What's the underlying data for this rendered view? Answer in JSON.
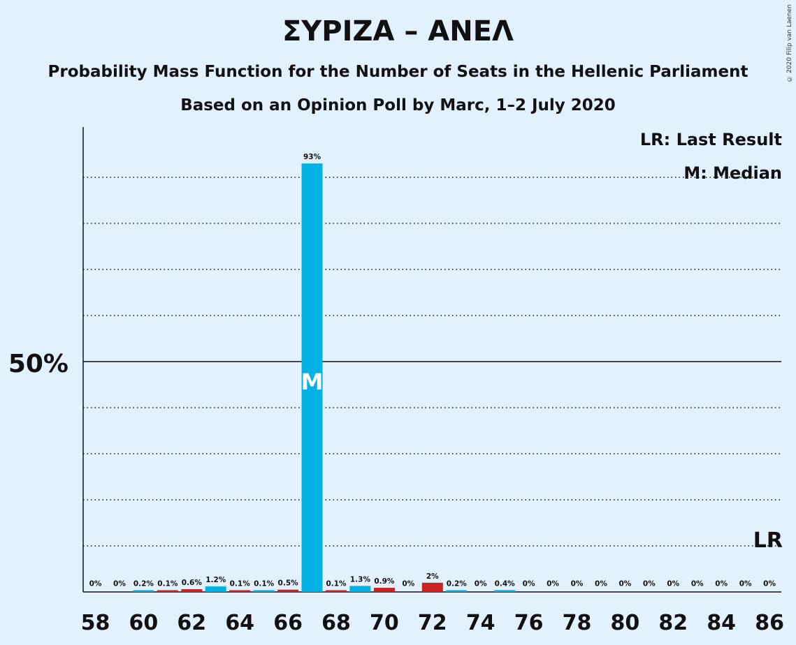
{
  "title": "ΣΥΡΙΖΑ – ΑΝΕΛ",
  "subtitle": "Probability Mass Function for the Number of Seats in the Hellenic Parliament",
  "subtitle2": "Based on an Opinion Poll by Marc, 1–2 July 2020",
  "copyright": "© 2020 Filip van Laenen",
  "legend": {
    "lr": "LR: Last Result",
    "median": "M: Median"
  },
  "colors": {
    "background": "#e3f0fd",
    "bar_primary": "#00b2e3",
    "bar_secondary": "#cc2222",
    "median_label": "#ffffff",
    "axis": "#111111"
  },
  "chart_data": {
    "type": "bar",
    "title": "ΣΥΡΙΖΑ – ΑΝΕΛ",
    "x": [
      58,
      59,
      60,
      61,
      62,
      63,
      64,
      65,
      66,
      67,
      68,
      69,
      70,
      71,
      72,
      73,
      74,
      75,
      76,
      77,
      78,
      79,
      80,
      81,
      82,
      83,
      84,
      85,
      86
    ],
    "series": [
      {
        "values": [
          0,
          0,
          0.2,
          0.1,
          0.6,
          1.2,
          0.1,
          0.1,
          0.5,
          93,
          0.1,
          1.3,
          0.9,
          0,
          2,
          0.2,
          0,
          0.4,
          0,
          0,
          0,
          0,
          0,
          0,
          0,
          0,
          0,
          0,
          0
        ],
        "labels": [
          "0%",
          "0%",
          "0.2%",
          "0.1%",
          "0.6%",
          "1.2%",
          "0.1%",
          "0.1%",
          "0.5%",
          "93%",
          "0.1%",
          "1.3%",
          "0.9%",
          "0%",
          "2%",
          "0.2%",
          "0%",
          "0.4%",
          "0%",
          "0%",
          "0%",
          "0%",
          "0%",
          "0%",
          "0%",
          "0%",
          "0%",
          "0%",
          "0%"
        ],
        "bar_colors": [
          "blue",
          "red",
          "blue",
          "red",
          "red",
          "blue",
          "red",
          "blue",
          "red",
          "blue",
          "red",
          "blue",
          "red",
          "red",
          "red",
          "blue",
          "red",
          "blue",
          "red",
          "blue",
          "red",
          "blue",
          "red",
          "blue",
          "red",
          "blue",
          "red",
          "blue",
          "red"
        ]
      }
    ],
    "x_tick_labels": [
      "58",
      "60",
      "62",
      "64",
      "66",
      "68",
      "70",
      "72",
      "74",
      "76",
      "78",
      "80",
      "82",
      "84",
      "86"
    ],
    "y_tick_label": "50%",
    "ylim": [
      0,
      100
    ],
    "median_seat": 67,
    "median_marker": "M",
    "last_result_seat": 86,
    "last_result_marker": "LR",
    "grid": "dotted every 10%, solid at 50%"
  }
}
